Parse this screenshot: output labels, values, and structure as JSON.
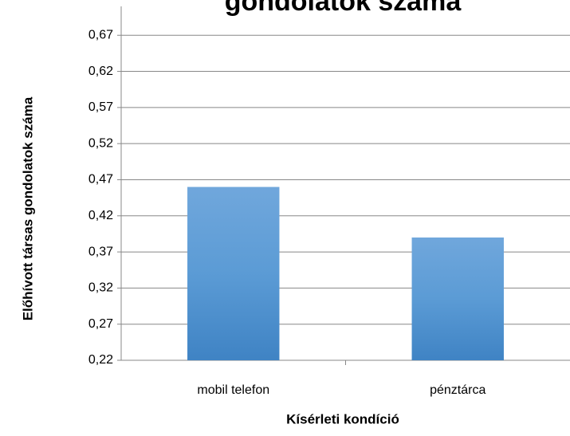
{
  "chart_data": {
    "type": "bar",
    "title": "gondolatok száma",
    "x_label": "Kísérleti kondíció",
    "y_label": "Előhívott társas gondolatok száma",
    "categories": [
      "mobil telefon",
      "pénztárca"
    ],
    "values": [
      0.46,
      0.39
    ],
    "color": "#5b9bd5",
    "ylim": [
      0.22,
      0.71
    ],
    "yticks": [
      {
        "value": 0.22,
        "label": "0,22"
      },
      {
        "value": 0.27,
        "label": "0,27"
      },
      {
        "value": 0.32,
        "label": "0,32"
      },
      {
        "value": 0.37,
        "label": "0,37"
      },
      {
        "value": 0.42,
        "label": "0,42"
      },
      {
        "value": 0.47,
        "label": "0,47"
      },
      {
        "value": 0.52,
        "label": "0,52"
      },
      {
        "value": 0.57,
        "label": "0,57"
      },
      {
        "value": 0.62,
        "label": "0,62"
      },
      {
        "value": 0.67,
        "label": "0,67"
      }
    ],
    "grid": true
  }
}
